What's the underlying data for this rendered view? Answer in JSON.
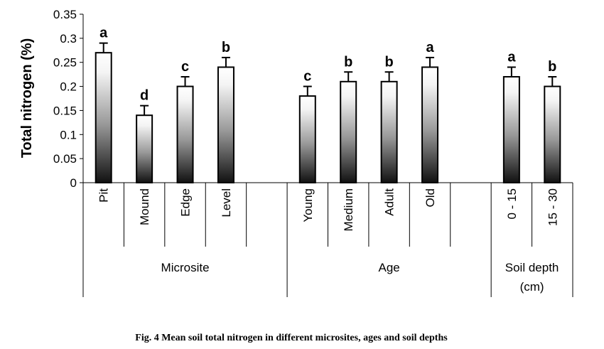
{
  "chart_data": {
    "type": "bar",
    "title": "",
    "ylabel": "Total nitrogen (%)",
    "xlabel": "",
    "ylim": [
      0,
      0.35
    ],
    "yticks": [
      "0",
      "0.05",
      "0.1",
      "0.15",
      "0.2",
      "0.25",
      "0.3",
      "0.35"
    ],
    "categories": [
      "Pit",
      "Mound",
      "Edge",
      "Level",
      "",
      "Young",
      "Medium",
      "Adult",
      "Old",
      "",
      "0 - 15",
      "15 - 30"
    ],
    "values": [
      0.27,
      0.14,
      0.2,
      0.24,
      null,
      0.18,
      0.21,
      0.21,
      0.24,
      null,
      0.22,
      0.2
    ],
    "errors": [
      0.02,
      0.02,
      0.02,
      0.02,
      null,
      0.02,
      0.02,
      0.02,
      0.02,
      null,
      0.02,
      0.02
    ],
    "letters": [
      "a",
      "d",
      "c",
      "b",
      "",
      "c",
      "b",
      "b",
      "a",
      "",
      "a",
      "b"
    ],
    "groups": [
      {
        "label": "Microsite",
        "label2": ""
      },
      {
        "label": "Age",
        "label2": ""
      },
      {
        "label": "Soil depth",
        "label2": "(cm)"
      }
    ],
    "grid": false,
    "legend": "none"
  },
  "caption": "Fig. 4 Mean soil total nitrogen in different microsites, ages and soil depths"
}
